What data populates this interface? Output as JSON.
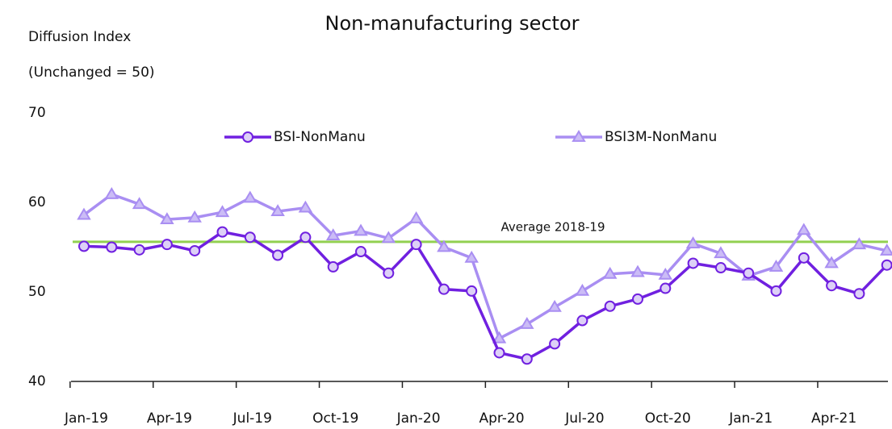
{
  "chart_data": {
    "type": "line",
    "title": "Non-manufacturing sector",
    "y_label": [
      "Diffusion Index",
      "(Unchanged = 50)"
    ],
    "categories": [
      "Jan-19",
      null,
      null,
      "Apr-19",
      null,
      null,
      "Jul-19",
      null,
      null,
      "Oct-19",
      null,
      null,
      "Jan-20",
      null,
      null,
      "Apr-20",
      null,
      null,
      "Jul-20",
      null,
      null,
      "Oct-20",
      null,
      null,
      "Jan-21",
      null,
      null,
      "Apr-21",
      null,
      null
    ],
    "series": [
      {
        "name": "BSI-NonManu",
        "color": "#7020e0",
        "marker": "circle",
        "values": [
          55.1,
          55.0,
          54.7,
          55.3,
          54.6,
          56.7,
          56.1,
          54.1,
          56.1,
          52.8,
          54.5,
          52.1,
          55.3,
          50.3,
          50.1,
          43.2,
          42.5,
          44.2,
          46.8,
          48.4,
          49.2,
          50.4,
          53.2,
          52.7,
          52.1,
          50.1,
          53.8,
          50.7,
          49.8,
          53.0
        ]
      },
      {
        "name": "BSI3M-NonManu",
        "color": "#a98ef2",
        "marker": "triangle",
        "values": [
          58.6,
          60.9,
          59.8,
          58.1,
          58.3,
          58.9,
          60.5,
          59.0,
          59.4,
          56.3,
          56.8,
          56.0,
          58.2,
          55.0,
          53.8,
          44.8,
          46.4,
          48.3,
          50.1,
          52.0,
          52.2,
          51.9,
          55.4,
          54.3,
          51.8,
          52.8,
          56.9,
          53.2,
          55.3,
          54.6
        ]
      }
    ],
    "reference_line": {
      "label": "Average 2018-19",
      "value": 55.6,
      "color": "#92d050"
    },
    "ylim": [
      40,
      70
    ],
    "yticks": [
      40,
      50,
      60,
      70
    ],
    "grid": false
  }
}
